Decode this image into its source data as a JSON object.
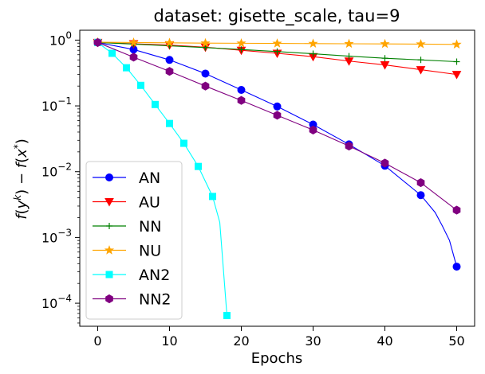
{
  "chart_data": {
    "type": "line",
    "title": "dataset: gisette_scale, tau=9",
    "xlabel": "Epochs",
    "ylabel": "f(y^k) - f(x^*)",
    "yscale": "log",
    "xlim": [
      -2.5,
      52.5
    ],
    "ylim_exp": [
      -4.35,
      0.15
    ],
    "x_ticks": [
      0,
      10,
      20,
      30,
      40,
      50
    ],
    "x_tick_labels": [
      "0",
      "10",
      "20",
      "30",
      "40",
      "50"
    ],
    "y_tick_exps": [
      0,
      -1,
      -2,
      -3,
      -4
    ],
    "y_tick_bases": [
      "10",
      "10",
      "10",
      "10",
      "10"
    ],
    "y_tick_powers": [
      "0",
      "−1",
      "−2",
      "−3",
      "−4"
    ],
    "legend_position": "lower-left",
    "series": [
      {
        "name": "AN",
        "color": "#0000ff",
        "marker": "circle",
        "x": [
          0,
          5,
          10,
          15,
          20,
          25,
          30,
          35,
          40,
          45,
          47,
          48,
          49,
          50
        ],
        "y": [
          0.92,
          0.72,
          0.5,
          0.31,
          0.175,
          0.098,
          0.052,
          0.026,
          0.0123,
          0.0044,
          0.0024,
          0.0015,
          0.0009,
          0.00036
        ],
        "marker_idx": [
          0,
          1,
          2,
          3,
          4,
          5,
          6,
          7,
          8,
          9,
          13
        ]
      },
      {
        "name": "AU",
        "color": "#ff0000",
        "marker": "triangle-down",
        "x": [
          0,
          5,
          10,
          15,
          20,
          25,
          30,
          35,
          40,
          45,
          50
        ],
        "y": [
          0.92,
          0.88,
          0.84,
          0.78,
          0.7,
          0.63,
          0.56,
          0.48,
          0.42,
          0.355,
          0.3
        ],
        "marker_idx": [
          0,
          1,
          2,
          3,
          4,
          5,
          6,
          7,
          8,
          9,
          10
        ]
      },
      {
        "name": "NN",
        "color": "#008000",
        "marker": "plus",
        "x": [
          0,
          5,
          10,
          15,
          20,
          25,
          30,
          35,
          40,
          45,
          50
        ],
        "y": [
          0.92,
          0.87,
          0.82,
          0.77,
          0.72,
          0.67,
          0.62,
          0.57,
          0.53,
          0.5,
          0.47
        ],
        "marker_idx": [
          0,
          1,
          2,
          3,
          4,
          5,
          6,
          7,
          8,
          9,
          10
        ]
      },
      {
        "name": "NU",
        "color": "#ffa500",
        "marker": "star",
        "x": [
          0,
          5,
          10,
          15,
          20,
          25,
          30,
          35,
          40,
          45,
          50
        ],
        "y": [
          0.93,
          0.92,
          0.91,
          0.9,
          0.895,
          0.89,
          0.885,
          0.88,
          0.875,
          0.87,
          0.86
        ],
        "marker_idx": [
          0,
          1,
          2,
          3,
          4,
          5,
          6,
          7,
          8,
          9,
          10
        ]
      },
      {
        "name": "AN2",
        "color": "#00ffff",
        "marker": "square",
        "x": [
          0,
          2,
          4,
          6,
          8,
          10,
          12,
          14,
          16,
          17,
          18
        ],
        "y": [
          0.92,
          0.63,
          0.38,
          0.205,
          0.105,
          0.054,
          0.027,
          0.012,
          0.0042,
          0.0017,
          6.5e-05
        ],
        "marker_idx": [
          0,
          1,
          2,
          3,
          4,
          5,
          6,
          7,
          8,
          10
        ]
      },
      {
        "name": "NN2",
        "color": "#800080",
        "marker": "hexagon",
        "x": [
          0,
          5,
          10,
          15,
          20,
          25,
          30,
          35,
          40,
          45,
          50
        ],
        "y": [
          0.92,
          0.55,
          0.335,
          0.2,
          0.121,
          0.072,
          0.043,
          0.0245,
          0.0135,
          0.0068,
          0.0026
        ],
        "marker_idx": [
          0,
          1,
          2,
          3,
          4,
          5,
          6,
          7,
          8,
          9,
          10
        ]
      }
    ]
  }
}
